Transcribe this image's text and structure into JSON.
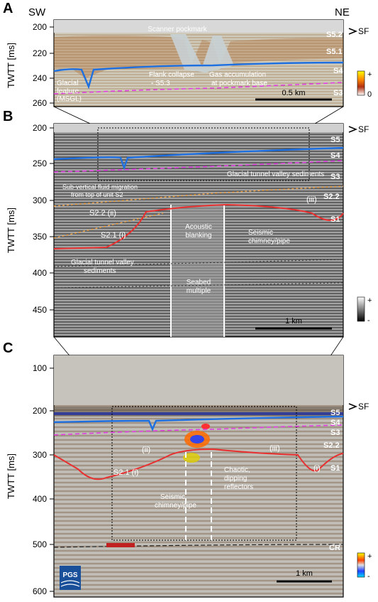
{
  "orientation": {
    "left": "SW",
    "right": "NE"
  },
  "ylabel": "TWTT [ms]",
  "panels": [
    {
      "letter": "A",
      "ticks": [
        "200",
        "220",
        "240",
        "260"
      ],
      "units": [
        {
          "id": "a-sf",
          "text": "SF",
          "arrow": true
        },
        {
          "id": "a-s52",
          "text": "S5.2"
        },
        {
          "id": "a-s51",
          "text": "S5.1"
        },
        {
          "id": "a-s4",
          "text": "S4"
        },
        {
          "id": "a-s3",
          "text": "S3"
        }
      ],
      "annotations": [
        "Scanner pockmark",
        "Flank collapse",
        "- S5.3",
        "Gas accumulation",
        "at pockmark base",
        "Glacial",
        "feature",
        "(MSGL)"
      ],
      "scalebar": "0.5 km",
      "colorbar": {
        "top": "+",
        "bottom": "0"
      }
    },
    {
      "letter": "B",
      "ticks": [
        "200",
        "250",
        "300",
        "350",
        "400",
        "450"
      ],
      "units": [
        {
          "id": "b-sf",
          "text": "SF",
          "arrow": true
        },
        {
          "id": "b-s5",
          "text": "S5"
        },
        {
          "id": "b-s4",
          "text": "S4"
        },
        {
          "id": "b-s3",
          "text": "S3"
        },
        {
          "id": "b-s22",
          "text": "S2.2"
        },
        {
          "id": "b-s1",
          "text": "S1"
        }
      ],
      "annotations": [
        "Glacial tunnel valley sediments",
        "Sub-vertical fluid migration",
        "from top of unit S2",
        "S2.2 (ii)",
        "S2.1 (i)",
        "(iii)",
        "Acoustic",
        "blanking",
        "Seismic",
        "chimney/pipe",
        "Glacial tunnel valley",
        "sediments",
        "Seabed",
        "multiple"
      ],
      "scalebar": "1 km",
      "colorbar": {
        "top": "+",
        "bottom": "-"
      }
    },
    {
      "letter": "C",
      "ticks": [
        "100",
        "200",
        "300",
        "400",
        "500",
        "600"
      ],
      "units": [
        {
          "id": "c-sf",
          "text": "SF",
          "arrow": true
        },
        {
          "id": "c-s5",
          "text": "S5"
        },
        {
          "id": "c-s4",
          "text": "S4"
        },
        {
          "id": "c-s3",
          "text": "S3"
        },
        {
          "id": "c-s22",
          "text": "S2.2"
        },
        {
          "id": "c-s1",
          "text": "S1"
        },
        {
          "id": "c-cr",
          "text": "CR",
          "arrow": false
        }
      ],
      "annotations": [
        "(ii)",
        "(iii)",
        "S2.1 (i)",
        "(i)",
        "Chaotic,",
        "dipping",
        "reflectors",
        "Seismic",
        "chimney/pipe"
      ],
      "scalebar": "1 km",
      "colorbar": {
        "top": "+",
        "bottom": "-"
      },
      "logo": "PGS"
    }
  ],
  "colors": {
    "s4_horizon": "#1e6fe0",
    "s3_horizon": "#e040e0",
    "s1_horizon": "#e83030",
    "s2_horizon": "#f0a040",
    "ui_text": "#ffffff"
  }
}
